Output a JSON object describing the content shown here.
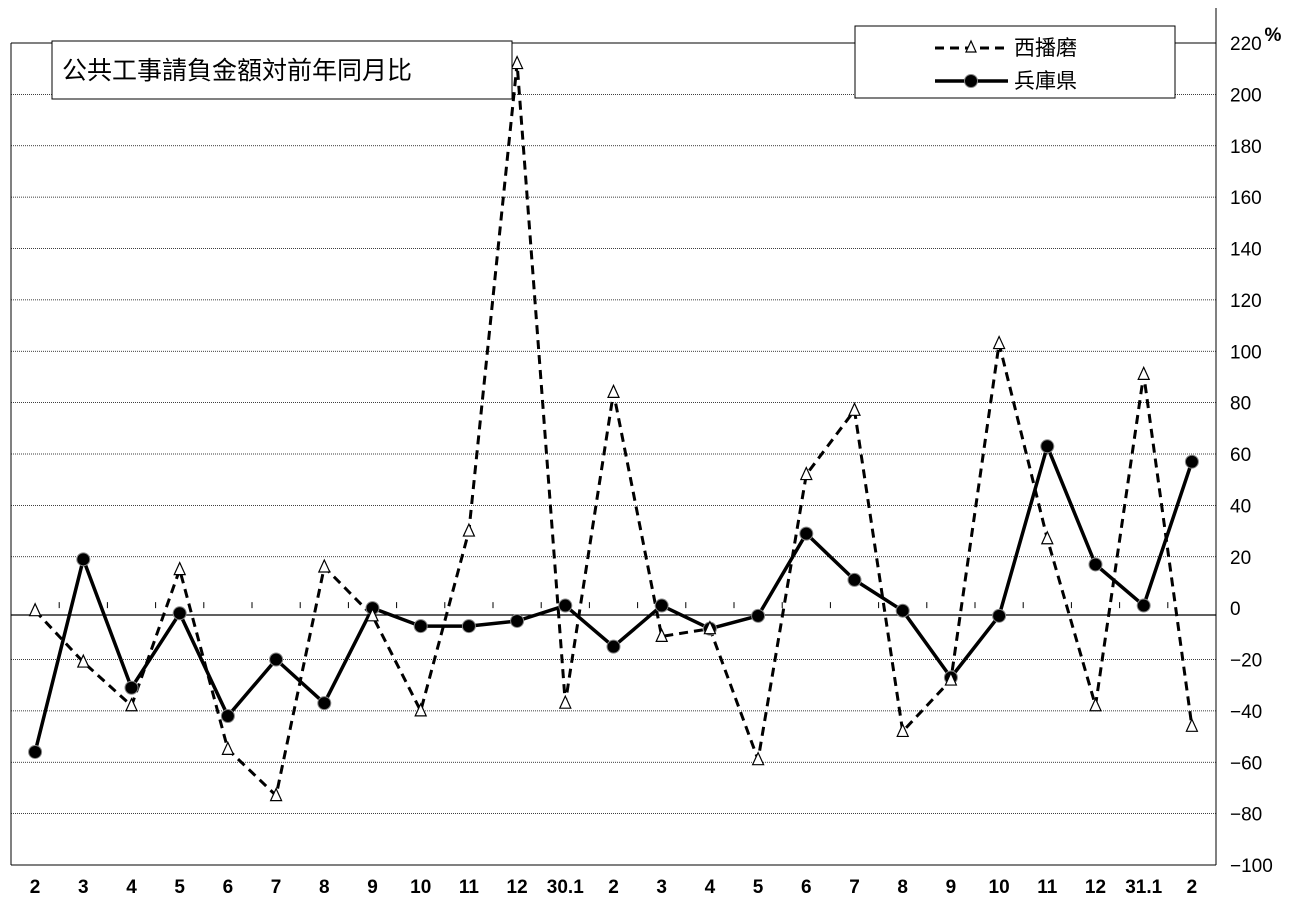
{
  "chart_data": {
    "type": "line",
    "title": "公共工事請負金額対前年同月比",
    "y_unit": "%",
    "ylim": [
      -100,
      220
    ],
    "yticks": [
      220,
      200,
      180,
      160,
      140,
      120,
      100,
      80,
      60,
      40,
      20,
      0,
      -20,
      -40,
      -60,
      -80,
      -100
    ],
    "y_axis_position": "right",
    "grid": "horizontal dotted",
    "legend_position": "top-right",
    "categories": [
      "2",
      "3",
      "4",
      "5",
      "6",
      "7",
      "8",
      "9",
      "10",
      "11",
      "12",
      "30.1",
      "2",
      "3",
      "4",
      "5",
      "6",
      "7",
      "8",
      "9",
      "10",
      "11",
      "12",
      "31.1",
      "2"
    ],
    "series": [
      {
        "name": "西播磨",
        "style": "dashed",
        "marker": "open-triangle",
        "color": "#000000",
        "values": [
          -1,
          -21,
          -38,
          15,
          -55,
          -73,
          16,
          -3,
          -40,
          30,
          212,
          -37,
          84,
          -11,
          -8,
          -59,
          52,
          77,
          -48,
          -28,
          103,
          27,
          -38,
          91,
          -46
        ]
      },
      {
        "name": "兵庫県",
        "style": "solid",
        "marker": "filled-circle",
        "color": "#000000",
        "values": [
          -56,
          19,
          -31,
          -2,
          -42,
          -20,
          -37,
          0,
          -7,
          -7,
          -5,
          1,
          -15,
          1,
          -8,
          -3,
          29,
          11,
          -1,
          -27,
          -3,
          63,
          17,
          1,
          57
        ]
      }
    ]
  }
}
